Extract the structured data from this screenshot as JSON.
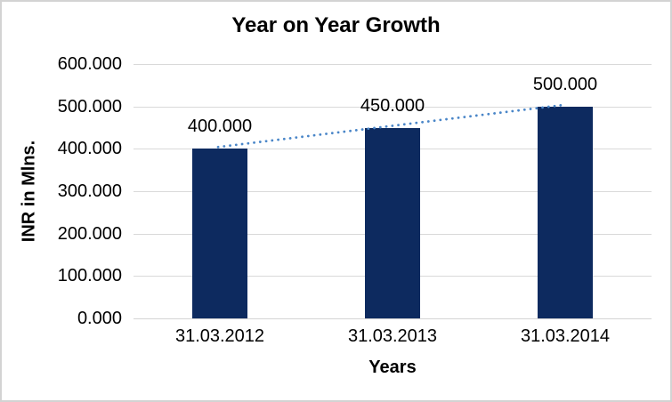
{
  "chart_data": {
    "type": "bar",
    "title": "Year on Year Growth",
    "xlabel": "Years",
    "ylabel": "INR in Mlns.",
    "categories": [
      "31.03.2012",
      "31.03.2013",
      "31.03.2014"
    ],
    "values": [
      400,
      450,
      500
    ],
    "data_labels": [
      "400.000",
      "450.000",
      "500.000"
    ],
    "ylim": [
      0,
      600
    ],
    "y_ticks": [
      {
        "value": 0,
        "label": "0.000"
      },
      {
        "value": 100,
        "label": "100.000"
      },
      {
        "value": 200,
        "label": "200.000"
      },
      {
        "value": 300,
        "label": "300.000"
      },
      {
        "value": 400,
        "label": "400.000"
      },
      {
        "value": 500,
        "label": "500.000"
      },
      {
        "value": 600,
        "label": "600.000"
      }
    ],
    "grid": "horizontal",
    "legend": "none",
    "trendline": {
      "type": "linear",
      "style": "dotted",
      "color": "#4a86c8"
    },
    "colors": {
      "bar": "#0d2a5f",
      "gridline": "#d9d9d9",
      "axis_line": "#d4d4d4",
      "text": "#000000",
      "border": "#d3d3d3",
      "background": "#ffffff"
    }
  }
}
